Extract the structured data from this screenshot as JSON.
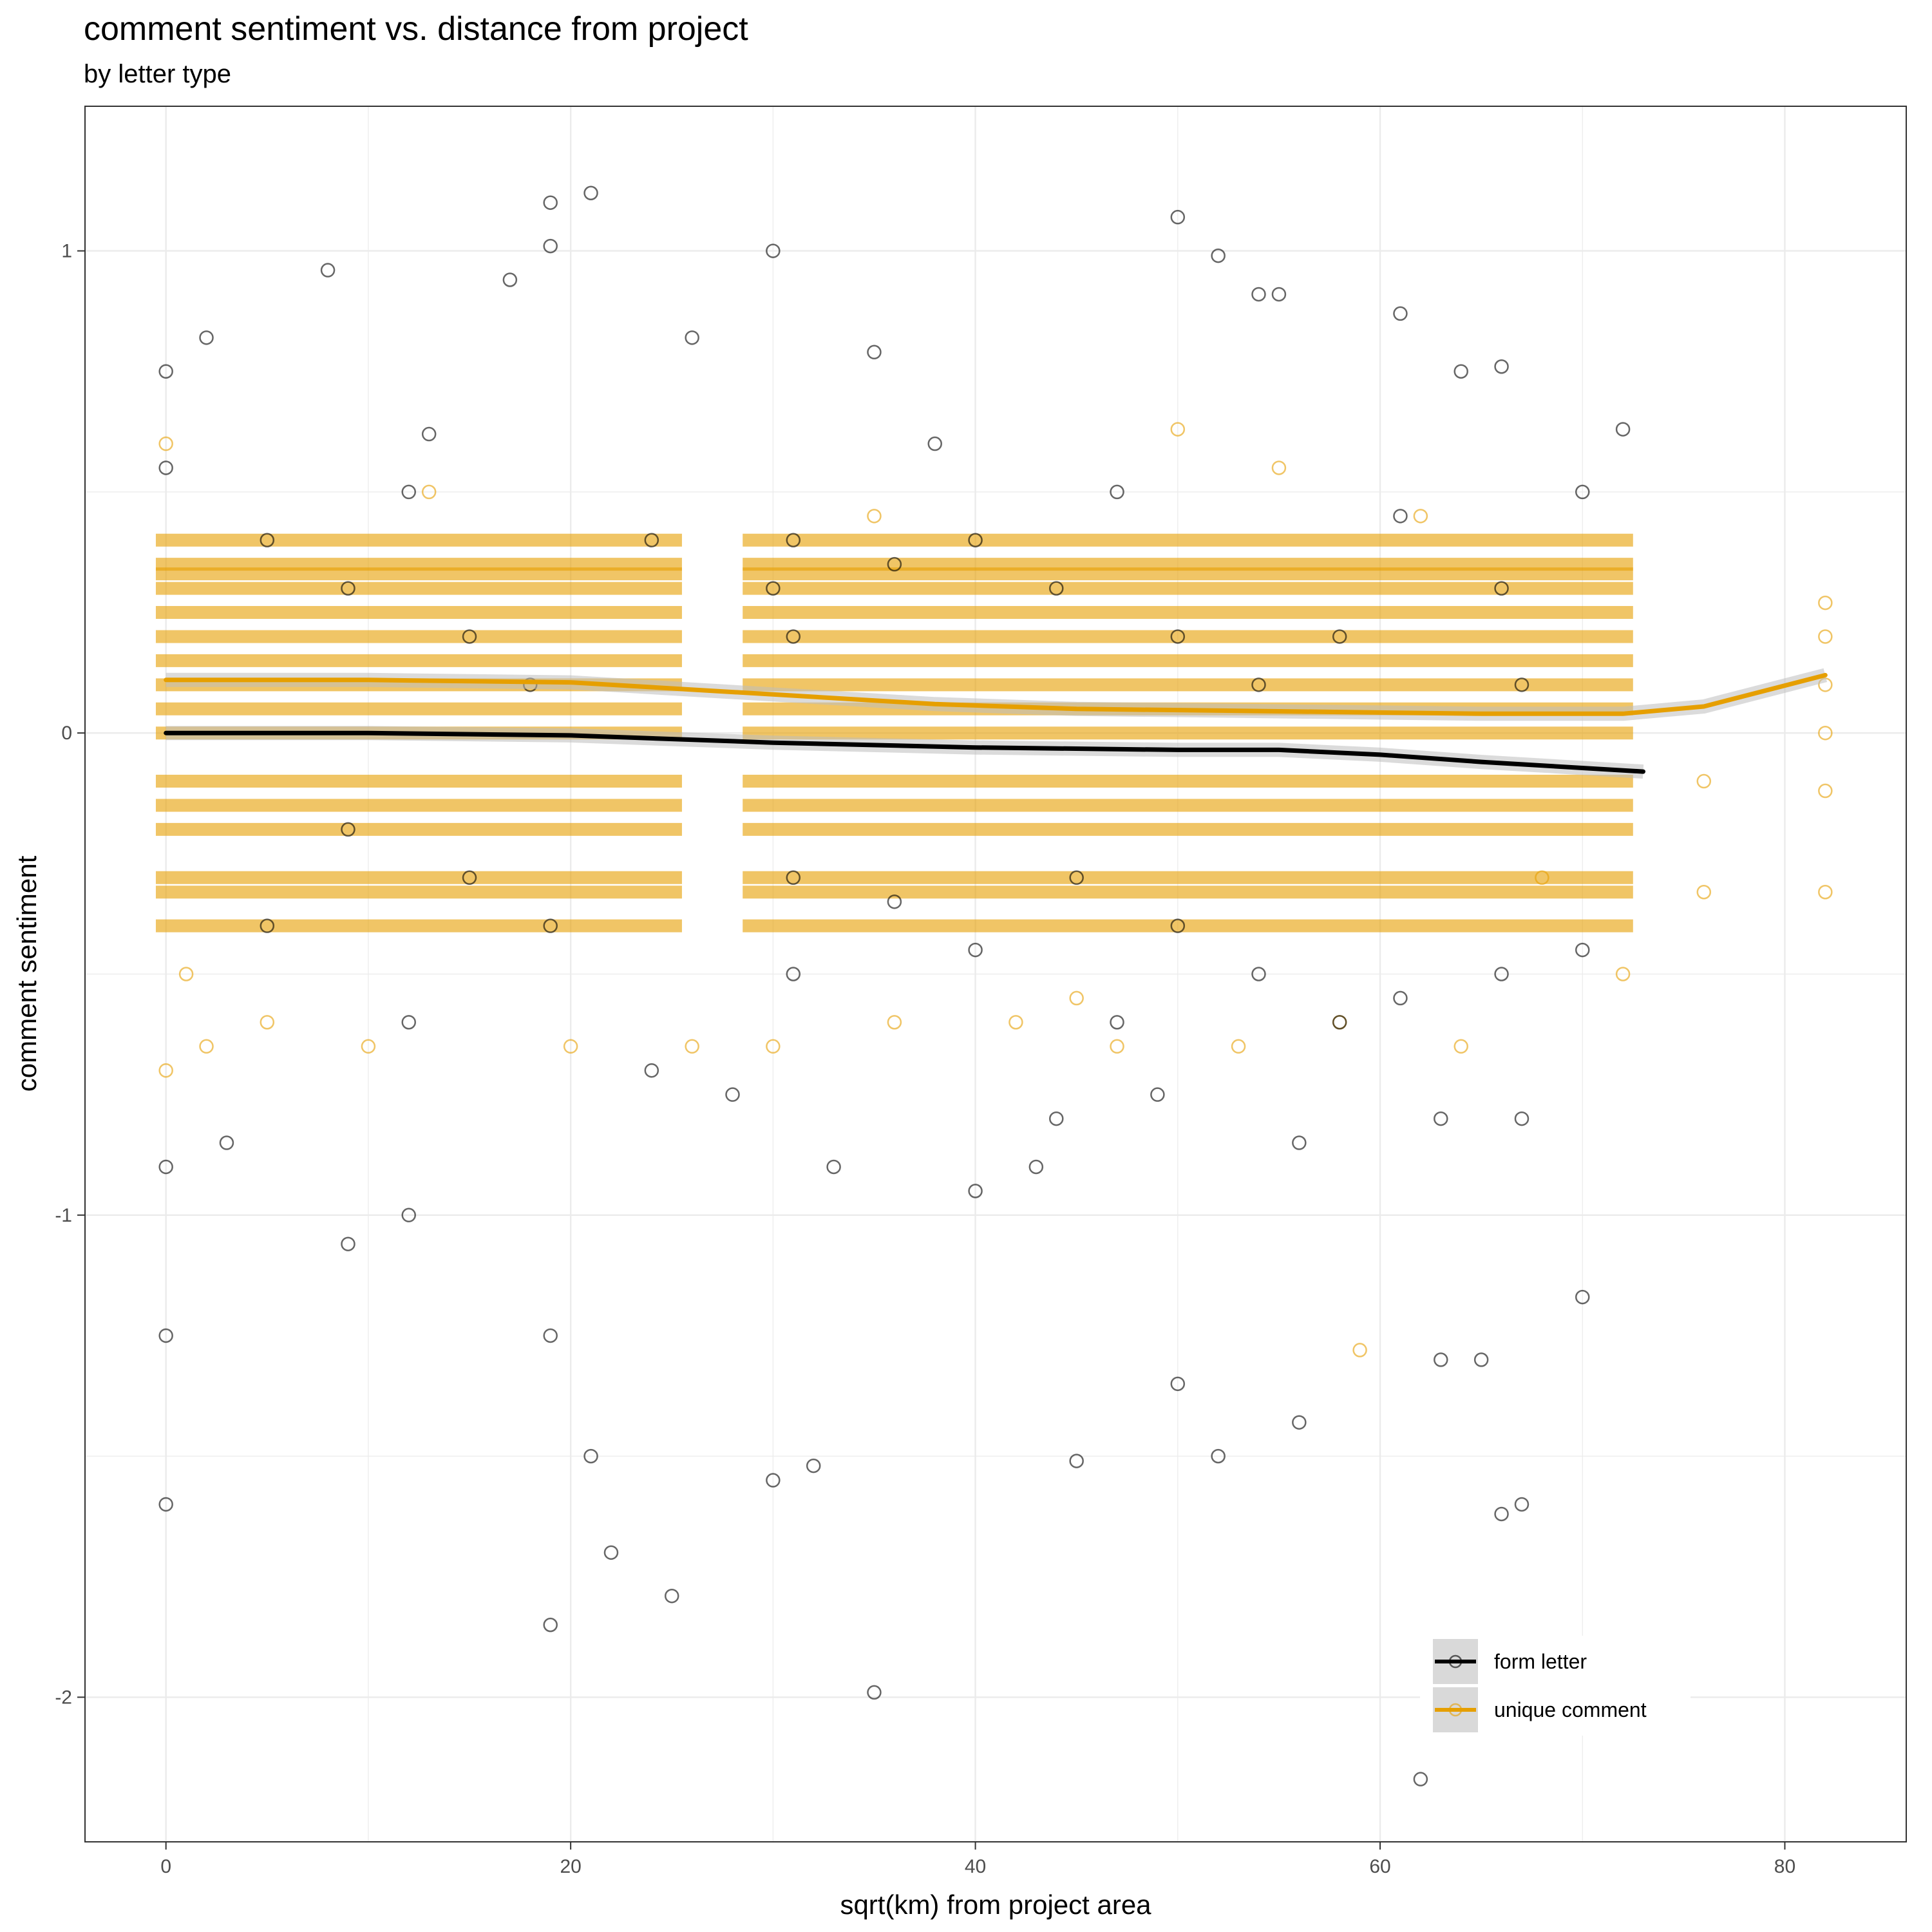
{
  "chart_data": {
    "type": "scatter",
    "title": "comment sentiment vs. distance from project",
    "subtitle": "by letter type",
    "xlabel": "sqrt(km) from project area",
    "ylabel": "comment sentiment",
    "xlim": [
      -4,
      86
    ],
    "ylim": [
      -2.3,
      1.3
    ],
    "x_ticks": [
      0,
      20,
      40,
      60,
      80
    ],
    "y_ticks": [
      1,
      0,
      -1,
      -2
    ],
    "x_tick_labels": [
      "0",
      "20",
      "40",
      "60",
      "80"
    ],
    "y_tick_labels": [
      "1",
      "0",
      "-1",
      "-2"
    ],
    "grid": true,
    "legend_position": "bottom-right",
    "series": [
      {
        "name": "form letter",
        "color": "#000000",
        "smooth": [
          [
            0,
            0.0
          ],
          [
            10,
            0.0
          ],
          [
            20,
            -0.005
          ],
          [
            30,
            -0.02
          ],
          [
            40,
            -0.03
          ],
          [
            50,
            -0.035
          ],
          [
            55,
            -0.035
          ],
          [
            60,
            -0.045
          ],
          [
            65,
            -0.06
          ],
          [
            73,
            -0.08
          ]
        ],
        "points": [
          [
            0,
            0.75
          ],
          [
            0,
            -1.6
          ],
          [
            0,
            -1.25
          ],
          [
            0,
            0.55
          ],
          [
            0,
            -0.9
          ],
          [
            2,
            0.82
          ],
          [
            8,
            0.96
          ],
          [
            13,
            0.62
          ],
          [
            17,
            0.94
          ],
          [
            19,
            1.1
          ],
          [
            19,
            1.01
          ],
          [
            21,
            1.12
          ],
          [
            26,
            0.82
          ],
          [
            30,
            1.0
          ],
          [
            35,
            0.79
          ],
          [
            44,
            -0.8
          ],
          [
            50,
            1.07
          ],
          [
            52,
            0.99
          ],
          [
            54,
            0.91
          ],
          [
            55,
            0.91
          ],
          [
            61,
            0.87
          ],
          [
            64,
            0.75
          ],
          [
            66,
            0.76
          ],
          [
            72,
            0.63
          ],
          [
            9,
            -1.06
          ],
          [
            12,
            -1.0
          ],
          [
            19,
            -1.25
          ],
          [
            21,
            -1.5
          ],
          [
            22,
            -1.7
          ],
          [
            25,
            -1.79
          ],
          [
            19,
            -1.85
          ],
          [
            35,
            -1.99
          ],
          [
            30,
            -1.55
          ],
          [
            32,
            -1.52
          ],
          [
            45,
            -1.51
          ],
          [
            52,
            -1.5
          ],
          [
            56,
            -1.43
          ],
          [
            62,
            -2.17
          ],
          [
            66,
            -1.62
          ],
          [
            67,
            -1.6
          ],
          [
            65,
            -1.3
          ],
          [
            70,
            -1.17
          ],
          [
            63,
            -1.3
          ],
          [
            50,
            -1.35
          ],
          [
            40,
            -0.95
          ],
          [
            30,
            0.3
          ],
          [
            31,
            0.4
          ],
          [
            31,
            0.2
          ],
          [
            31,
            -0.3
          ],
          [
            31,
            -0.5
          ],
          [
            9,
            0.3
          ],
          [
            9,
            -0.2
          ],
          [
            18,
            0.1
          ],
          [
            19,
            -0.4
          ],
          [
            44,
            0.3
          ],
          [
            45,
            -0.3
          ],
          [
            50,
            0.2
          ],
          [
            50,
            -0.4
          ],
          [
            54,
            0.1
          ],
          [
            54,
            -0.5
          ],
          [
            58,
            0.2
          ],
          [
            58,
            -0.6
          ],
          [
            66,
            0.3
          ],
          [
            66,
            -0.5
          ],
          [
            67,
            0.1
          ],
          [
            67,
            -0.8
          ],
          [
            5,
            0.4
          ],
          [
            5,
            -0.4
          ],
          [
            12,
            0.5
          ],
          [
            12,
            -0.6
          ],
          [
            15,
            0.2
          ],
          [
            15,
            -0.3
          ],
          [
            24,
            0.4
          ],
          [
            24,
            -0.7
          ],
          [
            36,
            0.35
          ],
          [
            36,
            -0.35
          ],
          [
            40,
            0.4
          ],
          [
            40,
            -0.45
          ],
          [
            47,
            0.5
          ],
          [
            47,
            -0.6
          ],
          [
            61,
            0.45
          ],
          [
            61,
            -0.55
          ],
          [
            70,
            0.5
          ],
          [
            70,
            -0.45
          ],
          [
            3,
            -0.85
          ],
          [
            28,
            -0.75
          ],
          [
            33,
            -0.9
          ],
          [
            38,
            0.6
          ],
          [
            43,
            -0.9
          ],
          [
            49,
            -0.75
          ],
          [
            56,
            -0.85
          ],
          [
            63,
            -0.8
          ]
        ]
      },
      {
        "name": "unique comment",
        "color": "#E69F00",
        "smooth": [
          [
            0,
            0.11
          ],
          [
            10,
            0.11
          ],
          [
            20,
            0.105
          ],
          [
            30,
            0.08
          ],
          [
            38,
            0.06
          ],
          [
            45,
            0.05
          ],
          [
            55,
            0.045
          ],
          [
            65,
            0.04
          ],
          [
            72,
            0.04
          ],
          [
            76,
            0.055
          ],
          [
            82,
            0.12
          ]
        ],
        "bands": [
          0.4,
          0.35,
          0.33,
          0.3,
          0.25,
          0.2,
          0.15,
          0.1,
          0.05,
          0.0,
          -0.1,
          -0.15,
          -0.2,
          -0.3,
          -0.33,
          -0.4
        ],
        "band_ranges": [
          [
            -0.5,
            25.5
          ],
          [
            28.5,
            72.5
          ]
        ],
        "points": [
          [
            0,
            0.6
          ],
          [
            0,
            -0.7
          ],
          [
            1,
            -0.5
          ],
          [
            2,
            -0.65
          ],
          [
            5,
            -0.6
          ],
          [
            10,
            -0.65
          ],
          [
            20,
            -0.65
          ],
          [
            26,
            -0.65
          ],
          [
            30,
            -0.65
          ],
          [
            36,
            -0.6
          ],
          [
            42,
            -0.6
          ],
          [
            47,
            -0.65
          ],
          [
            53,
            -0.65
          ],
          [
            58,
            -0.6
          ],
          [
            64,
            -0.65
          ],
          [
            72,
            -0.5
          ],
          [
            59,
            -1.28
          ],
          [
            50,
            0.63
          ],
          [
            76,
            -0.1
          ],
          [
            76,
            -0.33
          ],
          [
            82,
            0.27
          ],
          [
            82,
            0.2
          ],
          [
            82,
            0.1
          ],
          [
            82,
            0.0
          ],
          [
            82,
            -0.12
          ],
          [
            82,
            -0.33
          ],
          [
            13,
            0.5
          ],
          [
            35,
            0.45
          ],
          [
            45,
            -0.55
          ],
          [
            55,
            0.55
          ],
          [
            62,
            0.45
          ],
          [
            68,
            -0.3
          ]
        ]
      }
    ]
  }
}
